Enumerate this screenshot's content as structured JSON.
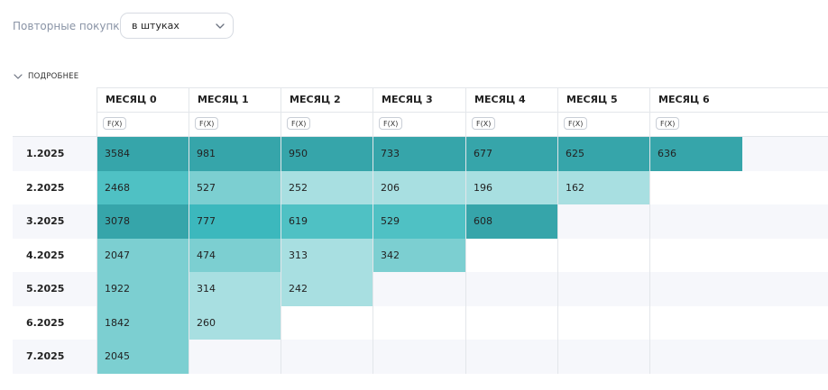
{
  "filter": {
    "label": "Повторные покупки",
    "selected": "в штуках"
  },
  "details": {
    "label": "ПОДРОБНЕЕ"
  },
  "columns": [
    {
      "label": "МЕСЯЦ 0",
      "fx": "F(X)"
    },
    {
      "label": "МЕСЯЦ 1",
      "fx": "F(X)"
    },
    {
      "label": "МЕСЯЦ 2",
      "fx": "F(X)"
    },
    {
      "label": "МЕСЯЦ 3",
      "fx": "F(X)"
    },
    {
      "label": "МЕСЯЦ 4",
      "fx": "F(X)"
    },
    {
      "label": "МЕСЯЦ 5",
      "fx": "F(X)"
    },
    {
      "label": "МЕСЯЦ 6",
      "fx": "F(X)"
    }
  ],
  "rows": [
    {
      "label": "1.2025",
      "values": [
        "3584",
        "981",
        "950",
        "733",
        "677",
        "625",
        "636"
      ]
    },
    {
      "label": "2.2025",
      "values": [
        "2468",
        "527",
        "252",
        "206",
        "196",
        "162"
      ]
    },
    {
      "label": "3.2025",
      "values": [
        "3078",
        "777",
        "619",
        "529",
        "608"
      ]
    },
    {
      "label": "4.2025",
      "values": [
        "2047",
        "474",
        "313",
        "342"
      ]
    },
    {
      "label": "5.2025",
      "values": [
        "1922",
        "314",
        "242"
      ]
    },
    {
      "label": "6.2025",
      "values": [
        "1842",
        "260"
      ]
    },
    {
      "label": "7.2025",
      "values": [
        "2045"
      ]
    }
  ],
  "colors": {
    "row_stripe": "#f6f7fb",
    "heat_darkest": "#36a5aa",
    "heat_dark": "#3cb8bd",
    "heat_mid": "#4fc1c4",
    "heat_light": "#7ccfd1",
    "heat_lightest": "#a8dfe1"
  }
}
